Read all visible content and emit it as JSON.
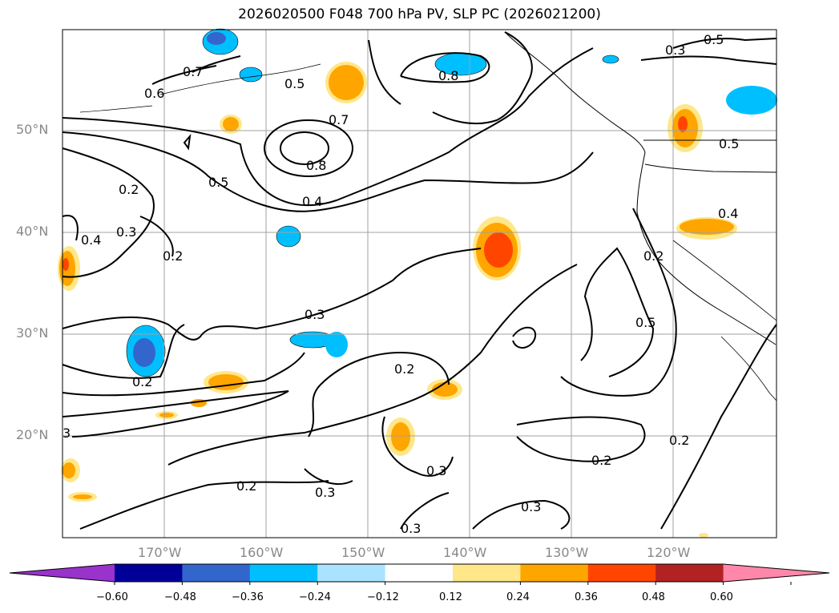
{
  "title": "2026020500 F048 700 hPa PV, SLP PC (2026021200)",
  "lat_labels": [
    "50°N",
    "40°N",
    "30°N",
    "20°N"
  ],
  "lon_labels": [
    "170°W",
    "160°W",
    "150°W",
    "140°W",
    "130°W",
    "120°W"
  ],
  "contour_labels": [
    "0.7",
    "0.6",
    "0.5",
    "0.8",
    "0.7",
    "0.8",
    "0.5",
    "0.4",
    "0.5",
    "0.2",
    "0.4",
    "0.3",
    "0.2",
    "0.3",
    "0.2",
    "0.3",
    "0.2",
    "0.3",
    "0.3",
    "0.3",
    "0.2",
    "0.3",
    "0.2",
    "0.5",
    "0.2",
    "0.4",
    "0.5",
    "3",
    "0.2"
  ],
  "colorbar": {
    "ticks": [
      "−0.60",
      "−0.48",
      "−0.36",
      "−0.24",
      "−0.12",
      "0.12",
      "0.24",
      "0.36",
      "0.48",
      "0.60"
    ],
    "colors": [
      "#9933cc",
      "#000099",
      "#3366cc",
      "#00bfff",
      "#aae3ff",
      "#ffffff",
      "#ffe78a",
      "#ffa500",
      "#ff4500",
      "#b22222",
      "#ff88aa"
    ]
  },
  "colors": {
    "contour": "#000000",
    "grid": "#a0a0a0",
    "coast": "#000000"
  }
}
